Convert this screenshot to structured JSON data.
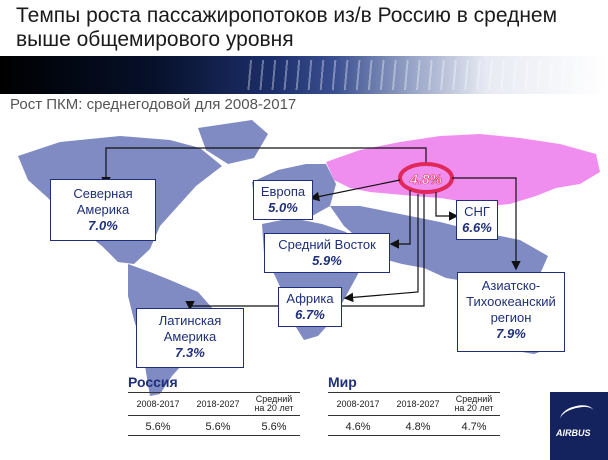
{
  "title": "Темпы роста пассажиропотоков из/в Россию в среднем выше общемирового уровня",
  "subtitle": "Рост ПКМ: среднегодовой для 2008-2017",
  "regions": [
    {
      "key": "north_america",
      "name": "Северная Америка",
      "value": "7.0%"
    },
    {
      "key": "europe",
      "name": "Европа",
      "value": "5.0%"
    },
    {
      "key": "middle_east",
      "name": "Средний Восток",
      "value": "5.9%"
    },
    {
      "key": "cis",
      "name": "СНГ",
      "value": "6.6%"
    },
    {
      "key": "africa",
      "name": "Африка",
      "value": "6.7%"
    },
    {
      "key": "latin_america",
      "name": "Латинская Америка",
      "value": "7.3%"
    },
    {
      "key": "asia_pacific",
      "name": "Азиатско-Тихоокеанский регион",
      "value": "7.9%"
    }
  ],
  "russia_value": "4.8%",
  "tables": {
    "russia": {
      "title": "Россия",
      "headers": [
        "2008-2017",
        "2018-2027",
        "Средний на 20 лет"
      ],
      "values": [
        "5.6%",
        "5.6%",
        "5.6%"
      ]
    },
    "world": {
      "title": "Мир",
      "headers": [
        "2008-2017",
        "2018-2027",
        "Средний на 20 лет"
      ],
      "values": [
        "4.6%",
        "4.8%",
        "4.7%"
      ]
    }
  },
  "logo_text": "AIRBUS",
  "colors": {
    "map": "#7f8bc2",
    "russia": "#f08ef0",
    "accent": "#e0285a",
    "navy": "#1f2f7a"
  },
  "chart_data": {
    "type": "table",
    "title": "Рост ПКМ: среднегодовой для 2008-2017",
    "map_values": [
      {
        "region": "Россия",
        "value": 4.8
      },
      {
        "region": "Северная Америка",
        "value": 7.0
      },
      {
        "region": "Европа",
        "value": 5.0
      },
      {
        "region": "Средний Восток",
        "value": 5.9
      },
      {
        "region": "СНГ",
        "value": 6.6
      },
      {
        "region": "Африка",
        "value": 6.7
      },
      {
        "region": "Латинская Америка",
        "value": 7.3
      },
      {
        "region": "Азиатско-Тихоокеанский регион",
        "value": 7.9
      }
    ],
    "columns": [
      "2008-2017",
      "2018-2027",
      "Средний на 20 лет"
    ],
    "rows": [
      {
        "name": "Россия",
        "values": [
          5.6,
          5.6,
          5.6
        ]
      },
      {
        "name": "Мир",
        "values": [
          4.6,
          4.8,
          4.7
        ]
      }
    ]
  }
}
